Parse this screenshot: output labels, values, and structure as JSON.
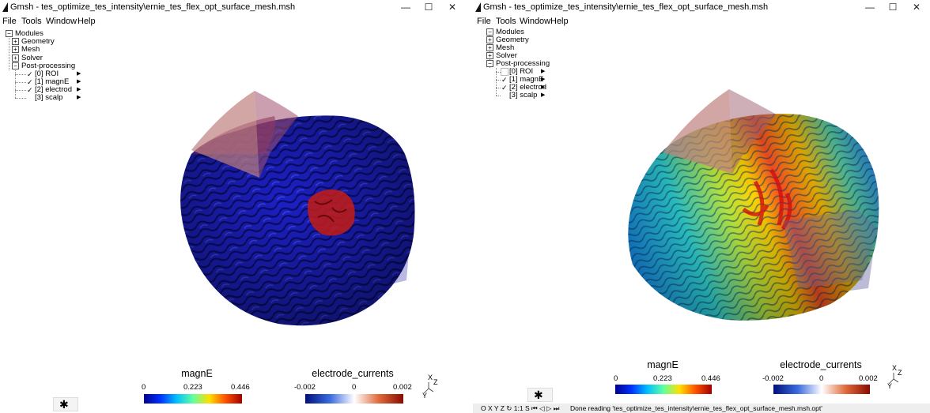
{
  "left": {
    "title": "Gmsh - tes_optimize_tes_intensity\\ernie_tes_flex_opt_surface_mesh.msh",
    "controls": [
      "—",
      "☐",
      "✕"
    ],
    "menu": [
      "File",
      "Tools",
      "Window",
      "Help"
    ],
    "tree": {
      "modules": "Modules",
      "geometry": "Geometry",
      "mesh": "Mesh",
      "solver": "Solver",
      "post": "Post-processing",
      "views": [
        {
          "label": "[0] ROI",
          "checked": true
        },
        {
          "label": "[1] magnE",
          "checked": true
        },
        {
          "label": "[2] electrod",
          "checked": true
        },
        {
          "label": "[3] scalp",
          "checked": false
        }
      ]
    },
    "colorbars": [
      {
        "title": "magnE",
        "min": "0",
        "mid": "0.223",
        "max": "0.446"
      },
      {
        "title": "electrode_currents",
        "min": "-0.002",
        "mid": "0",
        "max": "0.002"
      }
    ],
    "axes": {
      "x": "X",
      "z": "Z",
      "y": "Y"
    }
  },
  "right": {
    "title": "Gmsh - tes_optimize_tes_intensity\\ernie_tes_flex_opt_surface_mesh.msh",
    "controls": [
      "—",
      "☐",
      "✕"
    ],
    "menu": [
      "File",
      "Tools",
      "Window",
      "Help"
    ],
    "tree": {
      "modules": "Modules",
      "geometry": "Geometry",
      "mesh": "Mesh",
      "solver": "Solver",
      "post": "Post-processing",
      "views": [
        {
          "label": "[0] ROI",
          "checked": false
        },
        {
          "label": "[1] magnE",
          "checked": true
        },
        {
          "label": "[2] electrod",
          "checked": true
        },
        {
          "label": "[3] scalp",
          "checked": false
        }
      ]
    },
    "colorbars": [
      {
        "title": "magnE",
        "min": "0",
        "mid": "0.223",
        "max": "0.446"
      },
      {
        "title": "electrode_currents",
        "min": "-0.002",
        "mid": "0",
        "max": "0.002"
      }
    ],
    "axes": {
      "x": "X",
      "z": "Z",
      "y": "Y"
    },
    "status_controls": "O X Y Z ↻ 1:1 S ⏮ ◁ ▷ ⏭",
    "status_message": "Done reading 'tes_optimize_tes_intensity\\ernie_tes_flex_opt_surface_mesh.msh.opt'"
  },
  "icons": {
    "gear": "gear-icon",
    "check": "✓",
    "triangle": "▶",
    "minus": "−",
    "plus": "+"
  },
  "colors": {
    "brain_blue": "#1a1fb8",
    "roi_red": "#c02020",
    "electrode_pink": "#c89090"
  }
}
